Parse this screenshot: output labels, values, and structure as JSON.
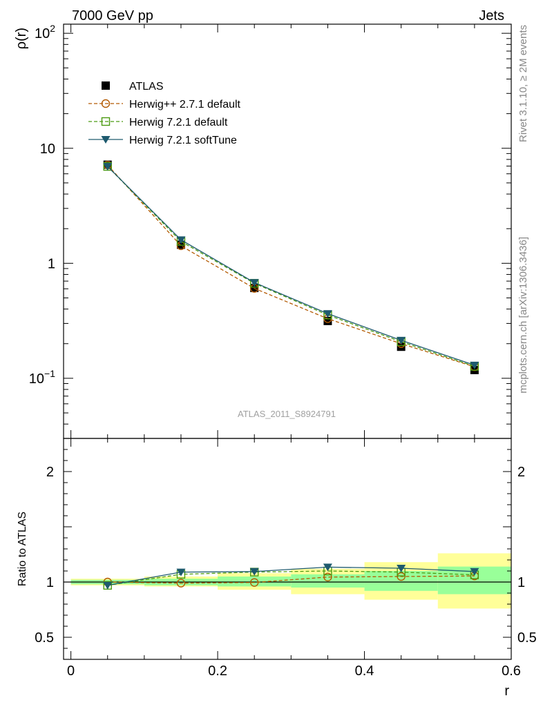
{
  "header": {
    "left": "7000 GeV pp",
    "right": "Jets"
  },
  "side_labels": {
    "top": "Rivet 3.1.10, ≥ 2M events",
    "bottom": "mcplots.cern.ch [arXiv:1306.3436]"
  },
  "watermark": "ATLAS_2011_S8924791",
  "colors": {
    "atlas": "#000000",
    "herwigpp": "#b35900",
    "herwig721": "#4a9a10",
    "softtune": "#1e5a6e",
    "band_outer": "#ffff99",
    "band_inner": "#99ff99"
  },
  "chart_data": [
    {
      "type": "scatter",
      "panel": "main",
      "ylabel": "ρ(r)",
      "yscale": "log",
      "ylim": [
        0.03,
        120
      ],
      "xlim": [
        -0.01,
        0.6
      ],
      "yticks": [
        {
          "value": 100,
          "base": "10",
          "exp": "2"
        },
        {
          "value": 10,
          "base": "10",
          "exp": ""
        },
        {
          "value": 1,
          "base": "1",
          "exp": ""
        },
        {
          "value": 0.1,
          "base": "10",
          "exp": "−1"
        }
      ],
      "x": [
        0.05,
        0.15,
        0.25,
        0.35,
        0.45,
        0.55
      ],
      "series": [
        {
          "name": "ATLAS",
          "key": "atlas",
          "marker": "filled-square",
          "values": [
            7.2,
            1.45,
            0.61,
            0.315,
            0.188,
            0.118
          ]
        },
        {
          "name": "Herwig++ 2.7.1 default",
          "key": "herwigpp",
          "marker": "open-circle",
          "line": "dashed",
          "values": [
            7.15,
            1.42,
            0.605,
            0.33,
            0.2,
            0.126
          ]
        },
        {
          "name": "Herwig 7.2.1 default",
          "key": "herwig721",
          "marker": "open-square",
          "line": "dashed",
          "values": [
            6.95,
            1.55,
            0.67,
            0.355,
            0.208,
            0.127
          ]
        },
        {
          "name": "Herwig 7.2.1 softTune",
          "key": "softtune",
          "marker": "filled-triangle-down",
          "line": "solid",
          "values": [
            6.95,
            1.6,
            0.68,
            0.365,
            0.214,
            0.13
          ]
        }
      ]
    },
    {
      "type": "scatter",
      "panel": "ratio",
      "xlabel": "r",
      "ylabel": "Ratio to ATLAS",
      "ylim": [
        0.3,
        2.3
      ],
      "xlim": [
        -0.01,
        0.6
      ],
      "xticks": [
        {
          "value": 0,
          "label": "0"
        },
        {
          "value": 0.2,
          "label": "0.2"
        },
        {
          "value": 0.4,
          "label": "0.4"
        },
        {
          "value": 0.6,
          "label": "0.6"
        }
      ],
      "yticks": [
        {
          "value": 0.5,
          "label": "0.5"
        },
        {
          "value": 1,
          "label": "1"
        },
        {
          "value": 2,
          "label": "2"
        }
      ],
      "bands": [
        {
          "x0": 0.0,
          "x1": 0.1,
          "outer": [
            0.97,
            1.03
          ],
          "inner": [
            0.98,
            1.02
          ]
        },
        {
          "x0": 0.1,
          "x1": 0.2,
          "outer": [
            0.96,
            1.05
          ],
          "inner": [
            0.97,
            1.03
          ]
        },
        {
          "x0": 0.2,
          "x1": 0.3,
          "outer": [
            0.93,
            1.08
          ],
          "inner": [
            0.96,
            1.05
          ]
        },
        {
          "x0": 0.3,
          "x1": 0.4,
          "outer": [
            0.89,
            1.12
          ],
          "inner": [
            0.95,
            1.07
          ]
        },
        {
          "x0": 0.4,
          "x1": 0.5,
          "outer": [
            0.84,
            1.18
          ],
          "inner": [
            0.92,
            1.1
          ]
        },
        {
          "x0": 0.5,
          "x1": 0.6,
          "outer": [
            0.76,
            1.26
          ],
          "inner": [
            0.89,
            1.14
          ]
        }
      ],
      "x": [
        0.05,
        0.15,
        0.25,
        0.35,
        0.45,
        0.55
      ],
      "series": [
        {
          "name": "Herwig++ 2.7.1 default",
          "key": "herwigpp",
          "marker": "open-circle",
          "line": "dashed",
          "values": [
            1.0,
            0.99,
            0.996,
            1.045,
            1.05,
            1.055
          ]
        },
        {
          "name": "Herwig 7.2.1 default",
          "key": "herwig721",
          "marker": "open-square",
          "line": "dashed",
          "values": [
            0.97,
            1.07,
            1.09,
            1.1,
            1.09,
            1.065
          ]
        },
        {
          "name": "Herwig 7.2.1 softTune",
          "key": "softtune",
          "marker": "filled-triangle-down",
          "line": "solid",
          "values": [
            0.97,
            1.09,
            1.095,
            1.135,
            1.125,
            1.095
          ]
        }
      ]
    }
  ]
}
